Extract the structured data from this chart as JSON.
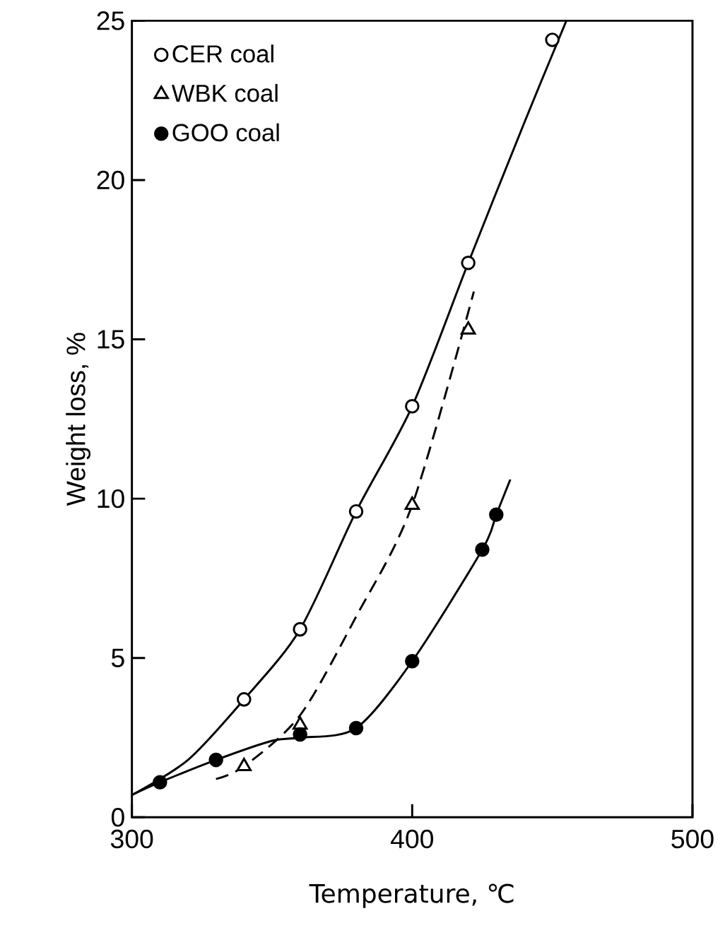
{
  "chart_data": {
    "type": "scatter",
    "xlabel": "Temperature, ℃",
    "ylabel": "Weight loss, %",
    "xlim": [
      300,
      500
    ],
    "ylim": [
      0,
      25
    ],
    "xticks": [
      300,
      400,
      500
    ],
    "yticks": [
      0,
      5,
      10,
      15,
      20,
      25
    ],
    "grid": false,
    "legend": "top left",
    "series": [
      {
        "type": "line",
        "color": "#000000",
        "line_style": "solid",
        "marker": "none",
        "x": [
          300,
          320,
          340,
          360,
          380,
          400,
          420,
          440,
          455
        ],
        "values": [
          0.7,
          1.8,
          3.7,
          5.9,
          9.6,
          12.9,
          17.4,
          21.8,
          25
        ]
      },
      {
        "type": "line",
        "color": "#000000",
        "line_style": "dashed",
        "marker": "none",
        "x": [
          330,
          340,
          360,
          380,
          400,
          422
        ],
        "values": [
          1.2,
          1.6,
          3.2,
          6.3,
          9.8,
          16.5
        ]
      },
      {
        "type": "line",
        "color": "#000000",
        "line_style": "solid",
        "marker": "none",
        "x": [
          300,
          310,
          330,
          350,
          360,
          380,
          400,
          425,
          430,
          435
        ],
        "values": [
          0.7,
          1.1,
          1.8,
          2.4,
          2.5,
          2.8,
          4.9,
          8.4,
          9.5,
          10.6
        ]
      },
      {
        "name": "CER coal",
        "color": "#ffffff",
        "marker": "circle",
        "x": [
          340,
          360,
          380,
          400,
          420,
          450
        ],
        "values": [
          3.7,
          5.9,
          9.6,
          12.9,
          17.4,
          24.4
        ]
      },
      {
        "name": "WBK coal",
        "color": "#ffffff",
        "marker": "triangle",
        "x": [
          340,
          360,
          400,
          420
        ],
        "values": [
          1.6,
          2.9,
          9.8,
          15.3
        ]
      },
      {
        "name": "GOO coal",
        "color": "#000000",
        "marker": "circle",
        "x": [
          310,
          330,
          360,
          380,
          400,
          425,
          430
        ],
        "values": [
          1.1,
          1.8,
          2.6,
          2.8,
          4.9,
          8.4,
          9.5
        ]
      }
    ]
  }
}
